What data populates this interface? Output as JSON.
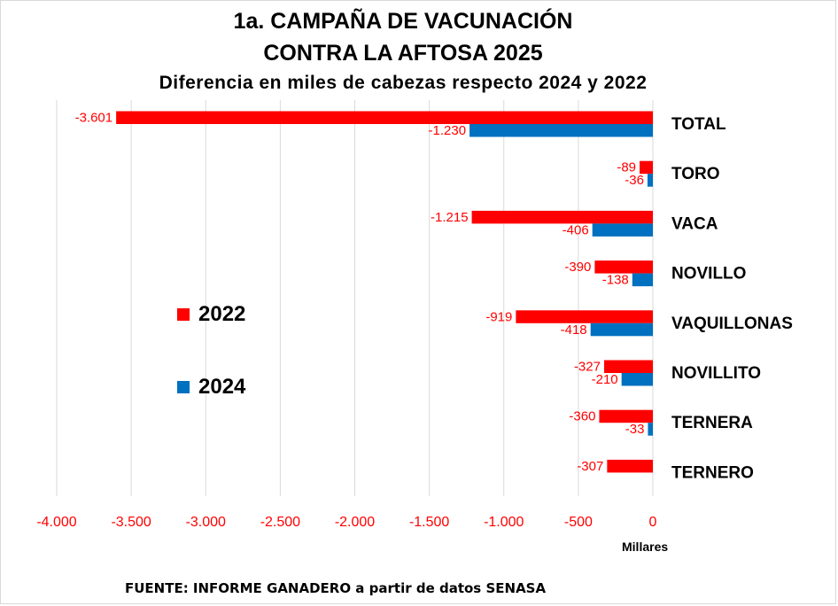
{
  "chart_data": {
    "type": "bar",
    "orientation": "horizontal",
    "title": "1a. CAMPAÑA DE VACUNACIÓN",
    "title_line2": "CONTRA LA AFTOSA 2025",
    "subtitle": "Diferencia  en miles de cabezas respecto 2024 y 2022",
    "categories": [
      "TOTAL",
      "TORO",
      "VACA",
      "NOVILLO",
      "VAQUILLONAS",
      "NOVILLITO",
      "TERNERA",
      "TERNERO"
    ],
    "series": [
      {
        "name": "2022",
        "color": "#ff0000",
        "values": [
          -3601,
          -89,
          -1215,
          -390,
          -919,
          -327,
          -360,
          -307
        ],
        "labels": [
          "-3.601",
          "-89",
          "-1.215",
          "-390",
          "-919",
          "-327",
          "-360",
          "-307"
        ]
      },
      {
        "name": "2024",
        "color": "#0070c0",
        "values": [
          -1230,
          -36,
          -406,
          -138,
          -418,
          -210,
          -33,
          null
        ],
        "labels": [
          "-1.230",
          "-36",
          "-406",
          "-138",
          "-418",
          "-210",
          "-33",
          ""
        ]
      }
    ],
    "xlim": [
      -4000,
      0
    ],
    "xticks": [
      -4000,
      -3500,
      -3000,
      -2500,
      -2000,
      -1500,
      -1000,
      -500,
      0
    ],
    "xtick_labels": [
      "-4.000",
      "-3.500",
      "-3.000",
      "-2.500",
      "-2.000",
      "-1.500",
      "-1.000",
      "-500",
      "0"
    ],
    "xunit": "Millares",
    "grid": "vertical",
    "legend_position": "left-middle",
    "source": "FUENTE: INFORME GANADERO a partir de datos SENASA"
  }
}
